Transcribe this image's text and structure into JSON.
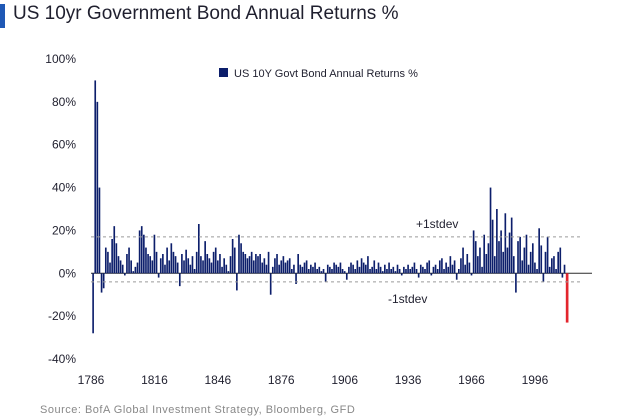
{
  "header": {
    "title": "US 10yr Government Bond Annual Returns %"
  },
  "colors": {
    "accent": "#1f58b5",
    "bar": "#0c1e6b",
    "latest_bar": "#e3252d",
    "band_line": "#9a9a9a"
  },
  "chart_data": {
    "type": "bar",
    "title": "",
    "xlabel": "",
    "ylabel": "",
    "legend": {
      "label": "US 10Y Govt Bond Annual Returns %",
      "position": "top-center"
    },
    "ylim": [
      -40,
      100
    ],
    "yticks": [
      -40,
      -20,
      0,
      20,
      40,
      60,
      80,
      100
    ],
    "ytick_labels": [
      "-40%",
      "-20%",
      "0%",
      "20%",
      "40%",
      "60%",
      "80%",
      "100%"
    ],
    "xlim": [
      1786,
      2023
    ],
    "xticks": [
      1786,
      1816,
      1846,
      1876,
      1906,
      1936,
      1966,
      1996
    ],
    "xtick_labels": [
      "1786",
      "1816",
      "1846",
      "1876",
      "1906",
      "1936",
      "1966",
      "1996"
    ],
    "bands": [
      {
        "label": "+1stdev",
        "value": 17
      },
      {
        "label": "-1stdev",
        "value": -4
      }
    ],
    "series": [
      {
        "start_year": 1787,
        "values": [
          -28,
          90,
          80,
          40,
          -9,
          -7,
          12,
          10,
          5,
          16,
          22,
          14,
          8,
          6,
          4,
          -1,
          9,
          12,
          6,
          1,
          3,
          5,
          20,
          22,
          18,
          12,
          9,
          8,
          6,
          18,
          10,
          -2,
          7,
          9,
          4,
          12,
          6,
          14,
          10,
          8,
          5,
          -6,
          9,
          6,
          11,
          7,
          4,
          8,
          2,
          10,
          23,
          8,
          6,
          15,
          9,
          7,
          5,
          10,
          12,
          6,
          9,
          3,
          7,
          4,
          1,
          8,
          16,
          12,
          -8,
          18,
          14,
          10,
          9,
          7,
          8,
          10,
          6,
          9,
          8,
          9,
          5,
          7,
          4,
          10,
          -10,
          3,
          7,
          9,
          4,
          6,
          8,
          5,
          6,
          7,
          2,
          4,
          -5,
          9,
          4,
          3,
          5,
          6,
          2,
          4,
          3,
          5,
          2,
          3,
          1,
          2,
          -4,
          4,
          3,
          2,
          5,
          4,
          3,
          5,
          2,
          1,
          -3,
          3,
          5,
          4,
          2,
          6,
          3,
          7,
          5,
          4,
          8,
          2,
          3,
          6,
          2,
          5,
          3,
          1,
          4,
          2,
          5,
          2,
          3,
          1,
          4,
          2,
          -1,
          3,
          2,
          4,
          2,
          3,
          5,
          2,
          -2,
          4,
          3,
          2,
          5,
          6,
          -1,
          3,
          4,
          2,
          6,
          7,
          2,
          5,
          3,
          8,
          4,
          6,
          -3,
          2,
          7,
          12,
          4,
          9,
          5,
          -1,
          20,
          15,
          8,
          12,
          3,
          18,
          9,
          14,
          40,
          25,
          8,
          30,
          15,
          20,
          10,
          28,
          12,
          19,
          26,
          8,
          -9,
          15,
          17,
          6,
          12,
          18,
          4,
          10,
          14,
          5,
          2,
          21,
          13,
          -4,
          10,
          17,
          3,
          7,
          8,
          2,
          10,
          12,
          -2,
          4,
          -23
        ]
      }
    ]
  },
  "footer": {
    "text": "Source: BofA Global Investment Strategy, Bloomberg, GFD"
  }
}
